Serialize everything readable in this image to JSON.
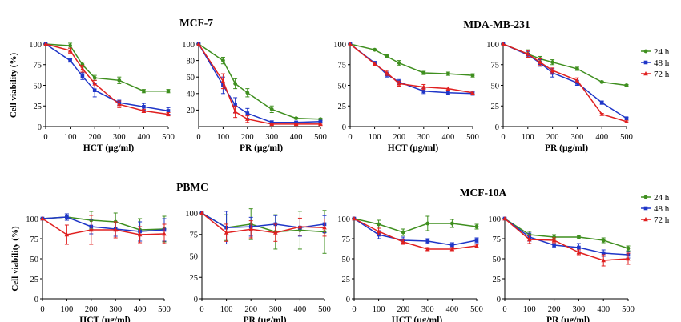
{
  "colors": {
    "24h": "#3f8f1f",
    "48h": "#1f36c8",
    "72h": "#e02020"
  },
  "chart_data": [
    {
      "type": "line",
      "id": "p1",
      "title": "MCF-7",
      "xlabel": "HCT (μg/ml)",
      "ylabel": "Cell viability (%)",
      "x": [
        0,
        100,
        150,
        200,
        300,
        400,
        500
      ],
      "xlim": [
        0,
        500
      ],
      "xticks": [
        0,
        100,
        200,
        300,
        400,
        500
      ],
      "ylim": [
        0,
        100
      ],
      "yticks": [
        0,
        25,
        50,
        75,
        100
      ],
      "series": [
        {
          "name": "24 h",
          "color": "#3f8f1f",
          "marker": "circle",
          "values": [
            100,
            98,
            75,
            59,
            56,
            43,
            43
          ],
          "err": [
            0,
            3,
            3,
            3,
            4,
            2,
            2
          ]
        },
        {
          "name": "48 h",
          "color": "#1f36c8",
          "marker": "square",
          "values": [
            100,
            80,
            61,
            44,
            29,
            24,
            19
          ],
          "err": [
            0,
            2,
            4,
            8,
            3,
            4,
            4
          ]
        },
        {
          "name": "72 h",
          "color": "#e02020",
          "marker": "triangle",
          "values": [
            100,
            92,
            70,
            52,
            27,
            19,
            15
          ],
          "err": [
            0,
            3,
            4,
            4,
            4,
            2,
            2
          ]
        }
      ]
    },
    {
      "type": "line",
      "id": "p2",
      "title": "",
      "xlabel": "PR (μg/ml)",
      "ylabel": "",
      "x": [
        0,
        100,
        150,
        200,
        300,
        400,
        500
      ],
      "xlim": [
        0,
        500
      ],
      "xticks": [
        0,
        100,
        200,
        300,
        400,
        500
      ],
      "ylim": [
        0,
        100
      ],
      "yticks": [
        20,
        40,
        60,
        80,
        100
      ],
      "series": [
        {
          "name": "24 h",
          "color": "#3f8f1f",
          "marker": "circle",
          "values": [
            100,
            80,
            52,
            41,
            21,
            10,
            9
          ],
          "err": [
            0,
            4,
            6,
            5,
            4,
            1,
            1
          ]
        },
        {
          "name": "48 h",
          "color": "#1f36c8",
          "marker": "square",
          "values": [
            100,
            50,
            26,
            16,
            5,
            5,
            6
          ],
          "err": [
            0,
            10,
            9,
            6,
            2,
            1,
            1
          ]
        },
        {
          "name": "72 h",
          "color": "#e02020",
          "marker": "triangle",
          "values": [
            100,
            55,
            18,
            9,
            3,
            3,
            3
          ],
          "err": [
            0,
            9,
            7,
            4,
            1,
            1,
            1
          ]
        }
      ]
    },
    {
      "type": "line",
      "id": "p3",
      "title": "MDA-MB-231",
      "xlabel": "HCT (μg/ml)",
      "ylabel": "",
      "x": [
        0,
        100,
        150,
        200,
        300,
        400,
        500
      ],
      "xlim": [
        0,
        500
      ],
      "xticks": [
        0,
        100,
        200,
        300,
        400,
        500
      ],
      "ylim": [
        0,
        100
      ],
      "yticks": [
        0,
        25,
        50,
        75,
        100
      ],
      "series": [
        {
          "name": "24 h",
          "color": "#3f8f1f",
          "marker": "circle",
          "values": [
            100,
            93,
            85,
            77,
            65,
            64,
            62
          ],
          "err": [
            0,
            1,
            2,
            3,
            2,
            2,
            2
          ]
        },
        {
          "name": "48 h",
          "color": "#1f36c8",
          "marker": "square",
          "values": [
            100,
            77,
            63,
            54,
            43,
            41,
            40
          ],
          "err": [
            0,
            2,
            3,
            3,
            3,
            2,
            2
          ]
        },
        {
          "name": "72 h",
          "color": "#e02020",
          "marker": "triangle",
          "values": [
            100,
            76,
            65,
            52,
            48,
            46,
            41
          ],
          "err": [
            0,
            2,
            3,
            3,
            3,
            2,
            2
          ]
        }
      ]
    },
    {
      "type": "line",
      "id": "p4",
      "title": "",
      "xlabel": "PR (μg/ml)",
      "ylabel": "",
      "x": [
        0,
        100,
        150,
        200,
        300,
        400,
        500
      ],
      "xlim": [
        0,
        500
      ],
      "xticks": [
        0,
        100,
        200,
        300,
        400,
        500
      ],
      "ylim": [
        0,
        100
      ],
      "yticks": [
        0,
        25,
        50,
        75,
        100
      ],
      "series": [
        {
          "name": "24 h",
          "color": "#3f8f1f",
          "marker": "circle",
          "values": [
            100,
            88,
            82,
            78,
            70,
            54,
            50
          ],
          "err": [
            0,
            5,
            3,
            3,
            2,
            1,
            1
          ]
        },
        {
          "name": "48 h",
          "color": "#1f36c8",
          "marker": "square",
          "values": [
            100,
            87,
            77,
            65,
            53,
            29,
            10
          ],
          "err": [
            0,
            4,
            4,
            5,
            3,
            2,
            1
          ]
        },
        {
          "name": "72 h",
          "color": "#e02020",
          "marker": "triangle",
          "values": [
            100,
            88,
            78,
            68,
            56,
            15,
            6
          ],
          "err": [
            0,
            4,
            4,
            3,
            3,
            1,
            1
          ]
        }
      ]
    },
    {
      "type": "line",
      "id": "p5",
      "title": "",
      "xlabel": "HCT (μg/ml)",
      "ylabel": "Cell viability (%)",
      "x": [
        0,
        100,
        200,
        300,
        400,
        500
      ],
      "xlim": [
        0,
        500
      ],
      "xticks": [
        0,
        100,
        200,
        300,
        400,
        500
      ],
      "ylim": [
        0,
        100
      ],
      "yticks": [
        0,
        25,
        50,
        75,
        100
      ],
      "series": [
        {
          "name": "24 h",
          "color": "#3f8f1f",
          "marker": "circle",
          "values": [
            100,
            102,
            98,
            96,
            86,
            87
          ],
          "err": [
            0,
            4,
            11,
            11,
            14,
            16
          ]
        },
        {
          "name": "48 h",
          "color": "#1f36c8",
          "marker": "square",
          "values": [
            100,
            102,
            90,
            87,
            84,
            86
          ],
          "err": [
            0,
            4,
            9,
            9,
            12,
            14
          ]
        },
        {
          "name": "72 h",
          "color": "#e02020",
          "marker": "triangle",
          "values": [
            100,
            80,
            86,
            86,
            80,
            81
          ],
          "err": [
            0,
            12,
            18,
            10,
            10,
            12
          ]
        }
      ]
    },
    {
      "type": "line",
      "id": "p6",
      "title": "PBMC",
      "xlabel": "PR (μg/ml)",
      "ylabel": "",
      "x": [
        0,
        100,
        200,
        300,
        400,
        500
      ],
      "xlim": [
        0,
        500
      ],
      "xticks": [
        0,
        100,
        200,
        300,
        400,
        500
      ],
      "ylim": [
        0,
        100
      ],
      "yticks": [
        0,
        25,
        50,
        75,
        100
      ],
      "series": [
        {
          "name": "24 h",
          "color": "#3f8f1f",
          "marker": "circle",
          "values": [
            100,
            83,
            87,
            78,
            80,
            78
          ],
          "err": [
            0,
            15,
            18,
            20,
            22,
            25
          ]
        },
        {
          "name": "48 h",
          "color": "#1f36c8",
          "marker": "square",
          "values": [
            100,
            83,
            84,
            87,
            83,
            87
          ],
          "err": [
            0,
            19,
            11,
            10,
            10,
            10
          ]
        },
        {
          "name": "72 h",
          "color": "#e02020",
          "marker": "triangle",
          "values": [
            100,
            77,
            81,
            77,
            84,
            83
          ],
          "err": [
            0,
            10,
            10,
            10,
            10,
            10
          ]
        }
      ]
    },
    {
      "type": "line",
      "id": "p7",
      "title": "",
      "xlabel": "HCT (μg/ml)",
      "ylabel": "",
      "x": [
        0,
        100,
        200,
        300,
        400,
        500
      ],
      "xlim": [
        0,
        500
      ],
      "xticks": [
        0,
        100,
        200,
        300,
        400,
        500
      ],
      "ylim": [
        0,
        100
      ],
      "yticks": [
        0,
        25,
        50,
        75,
        100
      ],
      "series": [
        {
          "name": "24 h",
          "color": "#3f8f1f",
          "marker": "circle",
          "values": [
            100,
            93,
            83,
            94,
            94,
            90
          ],
          "err": [
            0,
            5,
            4,
            9,
            5,
            3
          ]
        },
        {
          "name": "48 h",
          "color": "#1f36c8",
          "marker": "square",
          "values": [
            100,
            80,
            73,
            72,
            67,
            73
          ],
          "err": [
            0,
            5,
            4,
            3,
            3,
            3
          ]
        },
        {
          "name": "72 h",
          "color": "#e02020",
          "marker": "triangle",
          "values": [
            100,
            84,
            71,
            62,
            62,
            66
          ],
          "err": [
            0,
            4,
            3,
            2,
            2,
            2
          ]
        }
      ]
    },
    {
      "type": "line",
      "id": "p8",
      "title": "MCF-10A",
      "xlabel": "PR (μg/ml)",
      "ylabel": "",
      "x": [
        0,
        100,
        200,
        300,
        400,
        500
      ],
      "xlim": [
        0,
        500
      ],
      "xticks": [
        0,
        100,
        200,
        300,
        400,
        500
      ],
      "ylim": [
        0,
        100
      ],
      "yticks": [
        0,
        25,
        50,
        75,
        100
      ],
      "series": [
        {
          "name": "24 h",
          "color": "#3f8f1f",
          "marker": "circle",
          "values": [
            100,
            80,
            77,
            77,
            73,
            63
          ],
          "err": [
            0,
            4,
            3,
            2,
            3,
            3
          ]
        },
        {
          "name": "48 h",
          "color": "#1f36c8",
          "marker": "square",
          "values": [
            100,
            77,
            67,
            64,
            57,
            55
          ],
          "err": [
            0,
            5,
            3,
            5,
            4,
            4
          ]
        },
        {
          "name": "72 h",
          "color": "#e02020",
          "marker": "triangle",
          "values": [
            100,
            74,
            73,
            58,
            48,
            50
          ],
          "err": [
            0,
            5,
            3,
            3,
            7,
            7
          ]
        }
      ]
    }
  ],
  "legends": [
    {
      "items": [
        {
          "label": "24 h",
          "color": "#3f8f1f",
          "marker": "circle"
        },
        {
          "label": "48 h",
          "color": "#1f36c8",
          "marker": "square"
        },
        {
          "label": "72 h",
          "color": "#e02020",
          "marker": "triangle"
        }
      ]
    },
    {
      "items": [
        {
          "label": "24 h",
          "color": "#3f8f1f",
          "marker": "circle"
        },
        {
          "label": "48 h",
          "color": "#1f36c8",
          "marker": "square"
        },
        {
          "label": "72 h",
          "color": "#e02020",
          "marker": "triangle"
        }
      ]
    }
  ]
}
